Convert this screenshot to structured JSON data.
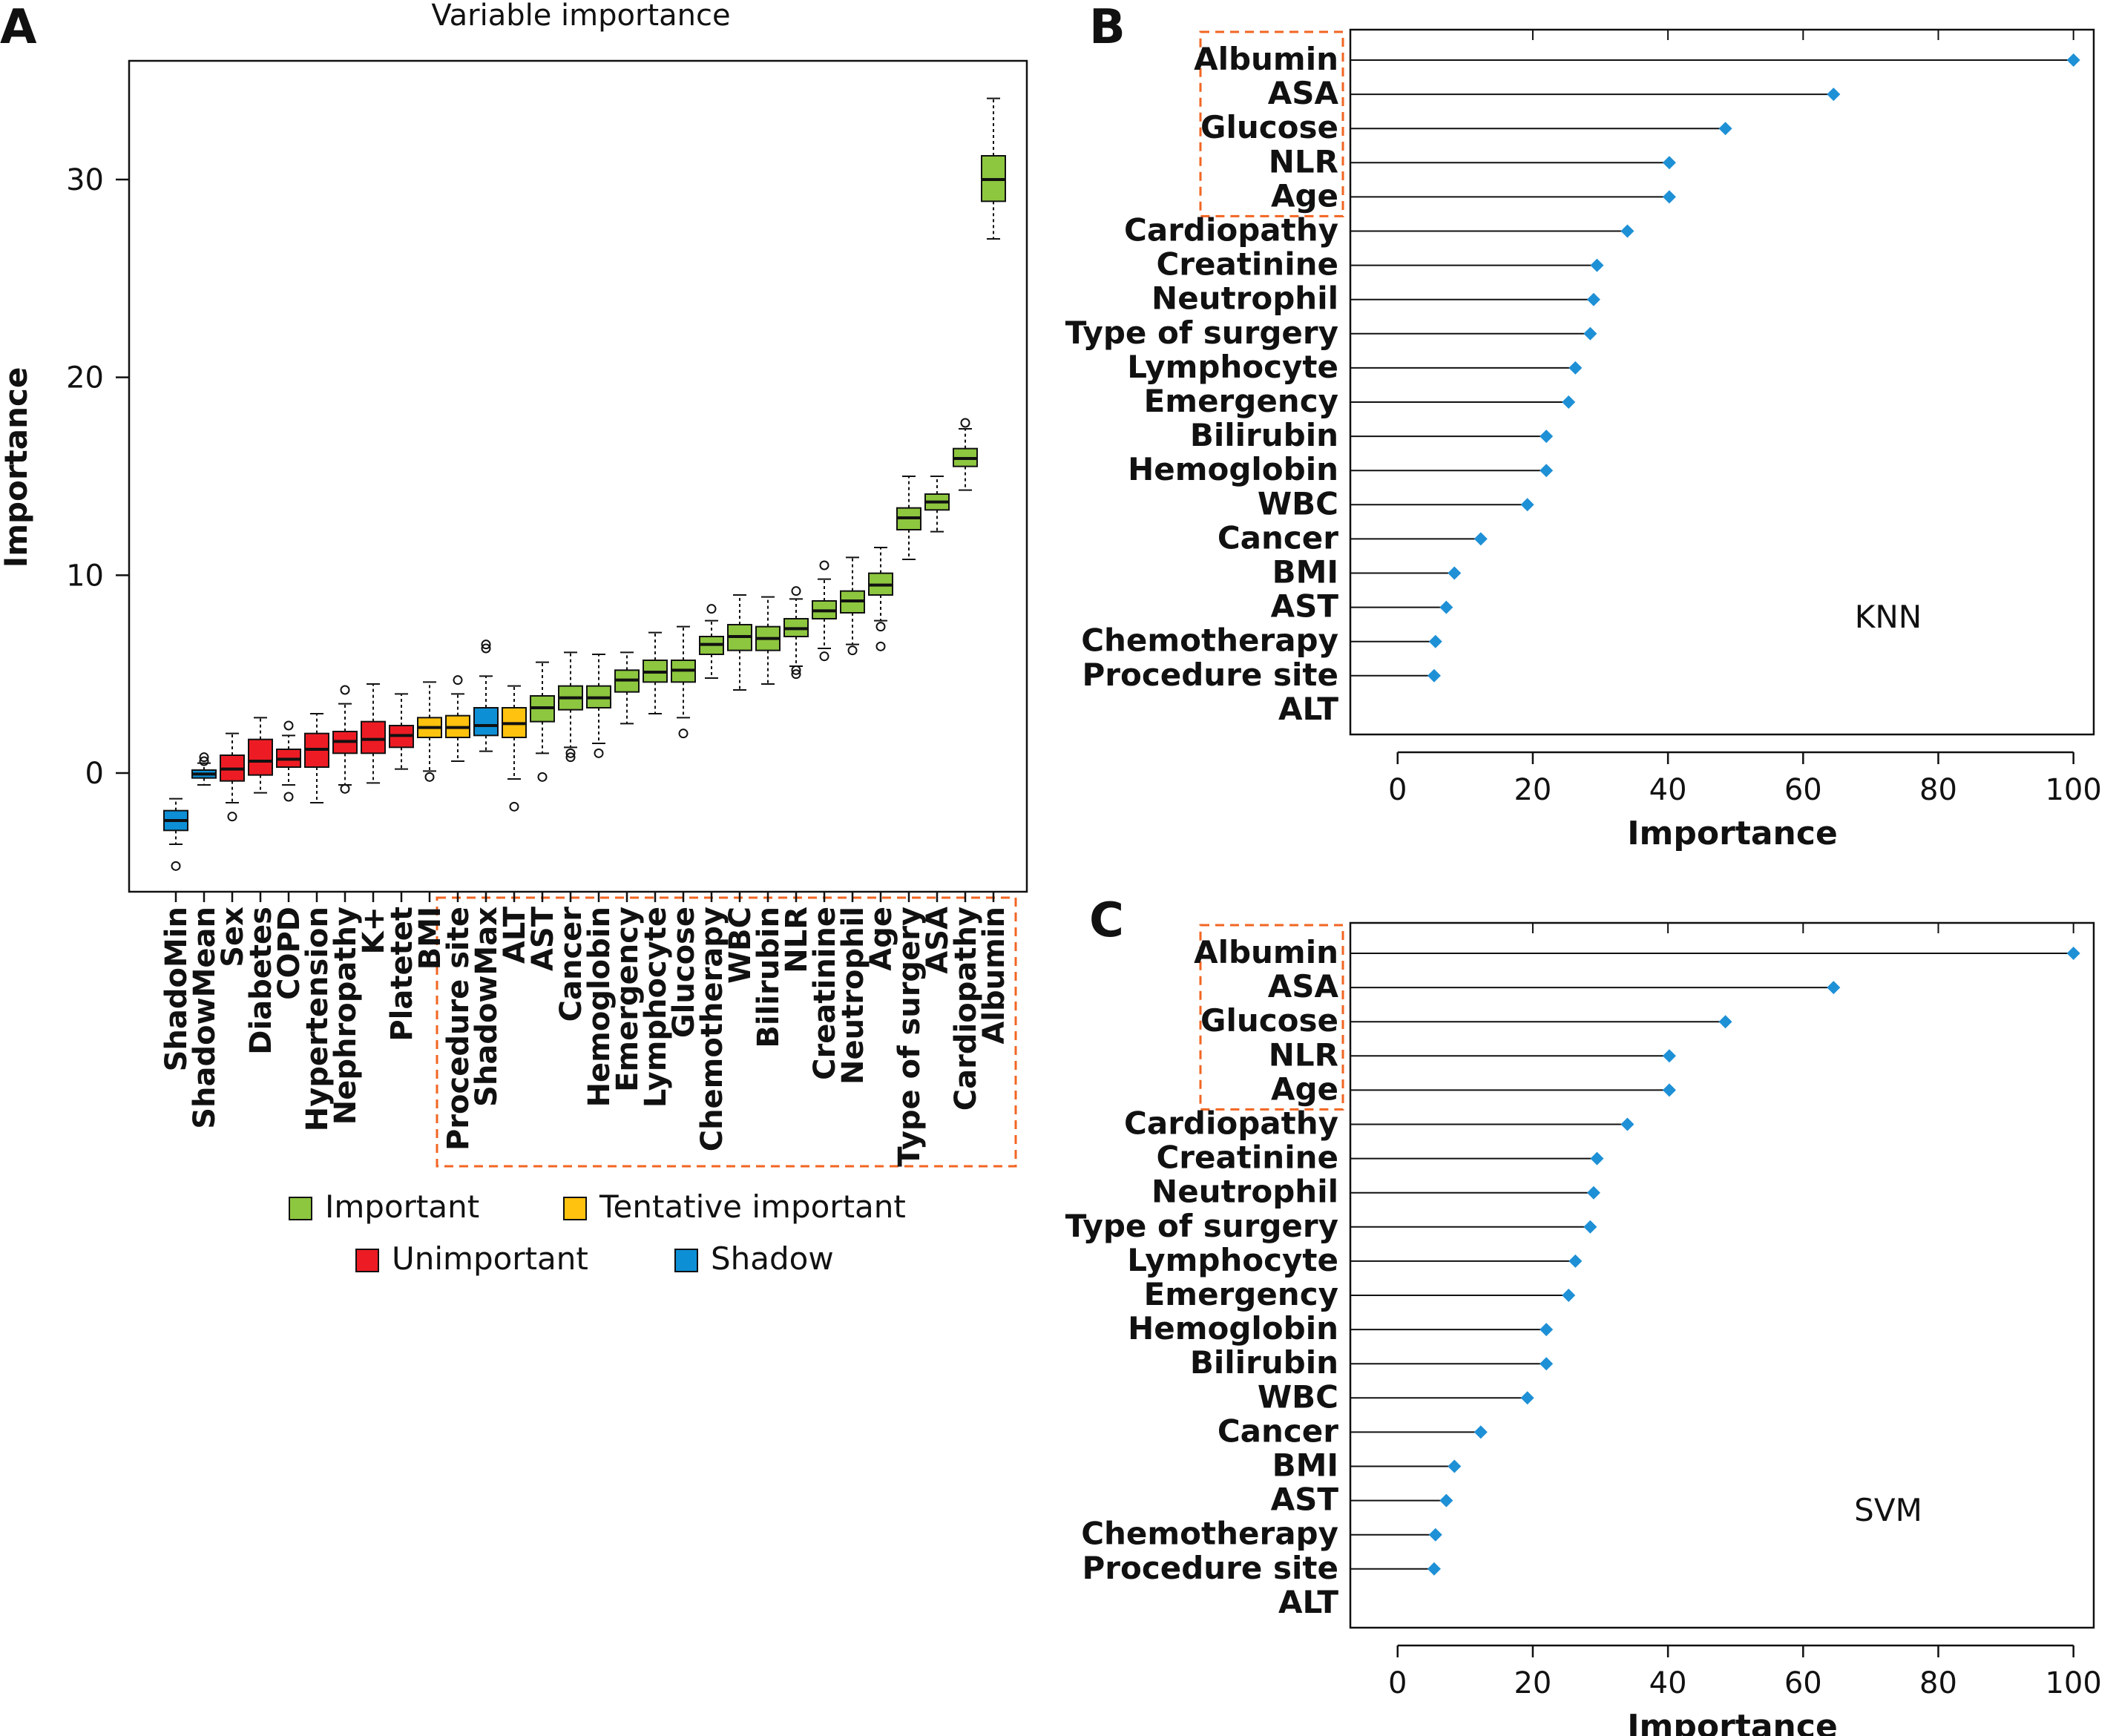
{
  "chart_data": [
    {
      "type": "boxplot",
      "panel_label": "A",
      "title": "Variable importance",
      "xlabel": "",
      "ylabel": "Importance",
      "ylim": [
        -6,
        36
      ],
      "yticks": [
        0,
        10,
        20,
        30
      ],
      "grid": false,
      "highlight_box": {
        "from_category": "Procedure site",
        "to_category": "Albumin",
        "color": "#f26522"
      },
      "categories": [
        "ShadoMin",
        "ShadowMean",
        "Sex",
        "Diabetes",
        "COPD",
        "Hypertension",
        "Nephropathy",
        "K+",
        "Platetet",
        "BMI",
        "Procedure site",
        "ShadowMax",
        "ALT",
        "AST",
        "Cancer",
        "Hemoglobin",
        "Emergency",
        "Lymphocyte",
        "Glucose",
        "Chemotherapy",
        "WBC",
        "Bilirubin",
        "NLR",
        "Creatinine",
        "Neutrophil",
        "Age",
        "Type of surgery",
        "ASA",
        "Cardiopathy",
        "Albumin"
      ],
      "boxes": [
        {
          "min": -3.6,
          "q1": -2.9,
          "median": -2.4,
          "q3": -1.9,
          "max": -1.3,
          "outliers": [
            -4.7
          ],
          "group": "Shadow"
        },
        {
          "min": -0.6,
          "q1": -0.25,
          "median": -0.05,
          "q3": 0.15,
          "max": 0.5,
          "outliers": [
            0.6,
            0.8
          ],
          "group": "Shadow"
        },
        {
          "min": -1.5,
          "q1": -0.4,
          "median": 0.2,
          "q3": 0.9,
          "max": 2.0,
          "outliers": [
            -2.2
          ],
          "group": "Unimportant"
        },
        {
          "min": -1.0,
          "q1": -0.1,
          "median": 0.6,
          "q3": 1.7,
          "max": 2.8,
          "outliers": [],
          "group": "Unimportant"
        },
        {
          "min": -0.6,
          "q1": 0.3,
          "median": 0.7,
          "q3": 1.2,
          "max": 1.9,
          "outliers": [
            2.4,
            -1.2
          ],
          "group": "Unimportant"
        },
        {
          "min": -1.5,
          "q1": 0.3,
          "median": 1.2,
          "q3": 2.0,
          "max": 3.0,
          "outliers": [],
          "group": "Unimportant"
        },
        {
          "min": -0.6,
          "q1": 1.0,
          "median": 1.6,
          "q3": 2.1,
          "max": 3.5,
          "outliers": [
            4.2,
            -0.8
          ],
          "group": "Unimportant"
        },
        {
          "min": -0.5,
          "q1": 1.0,
          "median": 1.7,
          "q3": 2.6,
          "max": 4.5,
          "outliers": [],
          "group": "Unimportant"
        },
        {
          "min": 0.2,
          "q1": 1.3,
          "median": 1.9,
          "q3": 2.4,
          "max": 4.0,
          "outliers": [],
          "group": "Unimportant"
        },
        {
          "min": 0.1,
          "q1": 1.8,
          "median": 2.3,
          "q3": 2.8,
          "max": 4.6,
          "outliers": [
            -0.2
          ],
          "group": "Tentative important"
        },
        {
          "min": 0.6,
          "q1": 1.8,
          "median": 2.3,
          "q3": 2.9,
          "max": 4.0,
          "outliers": [
            4.7
          ],
          "group": "Tentative important"
        },
        {
          "min": 1.1,
          "q1": 1.9,
          "median": 2.4,
          "q3": 3.3,
          "max": 4.9,
          "outliers": [
            6.3,
            6.5
          ],
          "group": "Shadow"
        },
        {
          "min": -0.3,
          "q1": 1.8,
          "median": 2.5,
          "q3": 3.3,
          "max": 4.4,
          "outliers": [
            -1.7
          ],
          "group": "Tentative important"
        },
        {
          "min": 1.0,
          "q1": 2.6,
          "median": 3.3,
          "q3": 3.9,
          "max": 5.6,
          "outliers": [
            -0.2
          ],
          "group": "Important"
        },
        {
          "min": 1.3,
          "q1": 3.2,
          "median": 3.8,
          "q3": 4.4,
          "max": 6.1,
          "outliers": [
            0.8,
            1.0
          ],
          "group": "Important"
        },
        {
          "min": 1.5,
          "q1": 3.3,
          "median": 3.8,
          "q3": 4.4,
          "max": 6.0,
          "outliers": [
            1.0
          ],
          "group": "Important"
        },
        {
          "min": 2.5,
          "q1": 4.1,
          "median": 4.7,
          "q3": 5.2,
          "max": 6.1,
          "outliers": [],
          "group": "Important"
        },
        {
          "min": 3.0,
          "q1": 4.6,
          "median": 5.1,
          "q3": 5.7,
          "max": 7.1,
          "outliers": [],
          "group": "Important"
        },
        {
          "min": 2.8,
          "q1": 4.6,
          "median": 5.2,
          "q3": 5.7,
          "max": 7.4,
          "outliers": [
            2.0
          ],
          "group": "Important"
        },
        {
          "min": 4.8,
          "q1": 6.0,
          "median": 6.5,
          "q3": 6.9,
          "max": 7.7,
          "outliers": [
            8.3
          ],
          "group": "Important"
        },
        {
          "min": 4.2,
          "q1": 6.2,
          "median": 6.9,
          "q3": 7.5,
          "max": 9.0,
          "outliers": [],
          "group": "Important"
        },
        {
          "min": 4.5,
          "q1": 6.2,
          "median": 6.8,
          "q3": 7.4,
          "max": 8.9,
          "outliers": [],
          "group": "Important"
        },
        {
          "min": 5.4,
          "q1": 6.9,
          "median": 7.3,
          "q3": 7.8,
          "max": 8.8,
          "outliers": [
            9.2,
            5.2,
            5.0
          ],
          "group": "Important"
        },
        {
          "min": 6.3,
          "q1": 7.8,
          "median": 8.2,
          "q3": 8.7,
          "max": 9.8,
          "outliers": [
            10.5,
            5.9
          ],
          "group": "Important"
        },
        {
          "min": 6.5,
          "q1": 8.1,
          "median": 8.7,
          "q3": 9.2,
          "max": 10.9,
          "outliers": [
            6.2
          ],
          "group": "Important"
        },
        {
          "min": 7.7,
          "q1": 9.0,
          "median": 9.5,
          "q3": 10.1,
          "max": 11.4,
          "outliers": [
            7.4,
            6.4
          ],
          "group": "Important"
        },
        {
          "min": 10.8,
          "q1": 12.3,
          "median": 12.9,
          "q3": 13.4,
          "max": 15.0,
          "outliers": [],
          "group": "Important"
        },
        {
          "min": 12.2,
          "q1": 13.3,
          "median": 13.7,
          "q3": 14.1,
          "max": 15.0,
          "outliers": [],
          "group": "Important"
        },
        {
          "min": 14.3,
          "q1": 15.5,
          "median": 15.9,
          "q3": 16.4,
          "max": 17.4,
          "outliers": [
            17.7
          ],
          "group": "Important"
        },
        {
          "min": 27.0,
          "q1": 28.9,
          "median": 30.0,
          "q3": 31.2,
          "max": 34.1,
          "outliers": [],
          "group": "Important"
        }
      ],
      "legend": [
        {
          "label": "Important",
          "color": "#8dc63f"
        },
        {
          "label": "Tentative important",
          "color": "#ffc20e"
        },
        {
          "label": "Unimportant",
          "color": "#ed1c24"
        },
        {
          "label": "Shadow",
          "color": "#0d8fd6"
        }
      ],
      "legend_position": "bottom"
    },
    {
      "type": "lollipop",
      "panel_label": "B",
      "annotation": "KNN",
      "xlabel": "Importance",
      "ylabel": "",
      "xlim": [
        -7,
        103
      ],
      "xticks": [
        0,
        20,
        40,
        60,
        80,
        100
      ],
      "grid": false,
      "highlight_box": {
        "from_category": "Albumin",
        "to_category": "Age",
        "color": "#f26522"
      },
      "categories": [
        "Albumin",
        "ASA",
        "Glucose",
        "NLR",
        "Age",
        "Cardiopathy",
        "Creatinine",
        "Neutrophil",
        "Type of surgery",
        "Lymphocyte",
        "Emergency",
        "Bilirubin",
        "Hemoglobin",
        "WBC",
        "Cancer",
        "BMI",
        "AST",
        "Chemotherapy",
        "Procedure site",
        "ALT"
      ],
      "values": [
        100,
        64.5,
        48.5,
        40.2,
        40.2,
        34,
        29.5,
        29,
        28.5,
        26.3,
        25.3,
        22,
        22,
        19.2,
        12.3,
        8.4,
        7.2,
        5.6,
        5.4,
        0
      ],
      "marker_color": "#1e90d6"
    },
    {
      "type": "lollipop",
      "panel_label": "C",
      "annotation": "SVM",
      "xlabel": "Importance",
      "ylabel": "",
      "xlim": [
        -7,
        103
      ],
      "xticks": [
        0,
        20,
        40,
        60,
        80,
        100
      ],
      "grid": false,
      "highlight_box": {
        "from_category": "Albumin",
        "to_category": "Age",
        "color": "#f26522"
      },
      "categories": [
        "Albumin",
        "ASA",
        "Glucose",
        "NLR",
        "Age",
        "Cardiopathy",
        "Creatinine",
        "Neutrophil",
        "Type of surgery",
        "Lymphocyte",
        "Emergency",
        "Hemoglobin",
        "Bilirubin",
        "WBC",
        "Cancer",
        "BMI",
        "AST",
        "Chemotherapy",
        "Procedure site",
        "ALT"
      ],
      "values": [
        100,
        64.5,
        48.5,
        40.2,
        40.2,
        34,
        29.5,
        29,
        28.5,
        26.3,
        25.3,
        22,
        22,
        19.2,
        12.3,
        8.4,
        7.2,
        5.6,
        5.4,
        0
      ],
      "marker_color": "#1e90d6"
    }
  ]
}
